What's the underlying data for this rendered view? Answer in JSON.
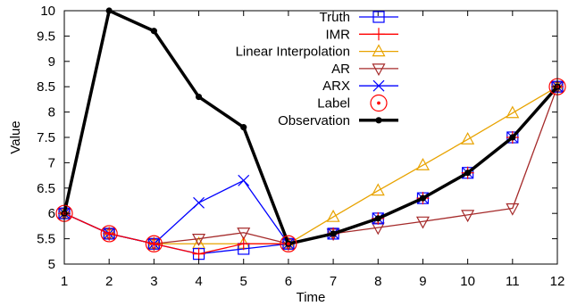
{
  "chart_data": {
    "type": "line",
    "title": "",
    "xlabel": "Time",
    "ylabel": "Value",
    "x": [
      1,
      2,
      3,
      4,
      5,
      6,
      7,
      8,
      9,
      10,
      11,
      12
    ],
    "xlim": [
      1,
      12
    ],
    "ylim": [
      5,
      10
    ],
    "xticks": [
      "1",
      "2",
      "3",
      "4",
      "5",
      "6",
      "7",
      "8",
      "9",
      "10",
      "11",
      "12"
    ],
    "yticks": [
      "5",
      "5.5",
      "6",
      "6.5",
      "7",
      "7.5",
      "8",
      "8.5",
      "9",
      "9.5",
      "10"
    ],
    "grid": false,
    "legend_position": "top-right",
    "series": [
      {
        "name": "Truth",
        "color": "#0000ff",
        "marker": "square",
        "values": [
          6.0,
          5.6,
          5.4,
          5.2,
          5.3,
          5.4,
          5.6,
          5.9,
          6.3,
          6.8,
          7.5,
          8.5
        ]
      },
      {
        "name": "IMR",
        "color": "#ff0000",
        "marker": "plus",
        "values": [
          6.0,
          5.6,
          5.4,
          5.2,
          5.4,
          5.4,
          5.6,
          5.9,
          6.3,
          6.8,
          7.5,
          8.5
        ]
      },
      {
        "name": "Linear Interpolation",
        "color": "#e8a300",
        "marker": "triangle-up",
        "values": [
          6.0,
          5.6,
          5.4,
          5.4,
          5.4,
          5.4,
          5.93,
          6.45,
          6.95,
          7.46,
          7.98,
          8.5
        ]
      },
      {
        "name": "AR",
        "color": "#a52a2a",
        "marker": "triangle-down",
        "values": [
          6.0,
          5.6,
          5.4,
          5.5,
          5.62,
          5.4,
          5.6,
          5.72,
          5.84,
          5.97,
          6.1,
          8.5
        ]
      },
      {
        "name": "ARX",
        "color": "#0000ff",
        "marker": "x",
        "values": [
          6.0,
          5.6,
          5.4,
          6.21,
          6.65,
          5.4,
          5.6,
          5.9,
          6.3,
          6.8,
          7.5,
          8.5
        ]
      },
      {
        "name": "Label",
        "color": "#ff0000",
        "marker": "circle-dot",
        "points": [
          [
            1,
            6.0
          ],
          [
            2,
            5.6
          ],
          [
            3,
            5.4
          ],
          [
            6,
            5.4
          ],
          [
            12,
            8.5
          ]
        ]
      },
      {
        "name": "Observation",
        "color": "#000000",
        "marker": "dot",
        "values": [
          6.0,
          10.0,
          9.6,
          8.3,
          7.7,
          5.4,
          5.6,
          5.9,
          6.3,
          6.8,
          7.5,
          8.5
        ]
      }
    ]
  }
}
